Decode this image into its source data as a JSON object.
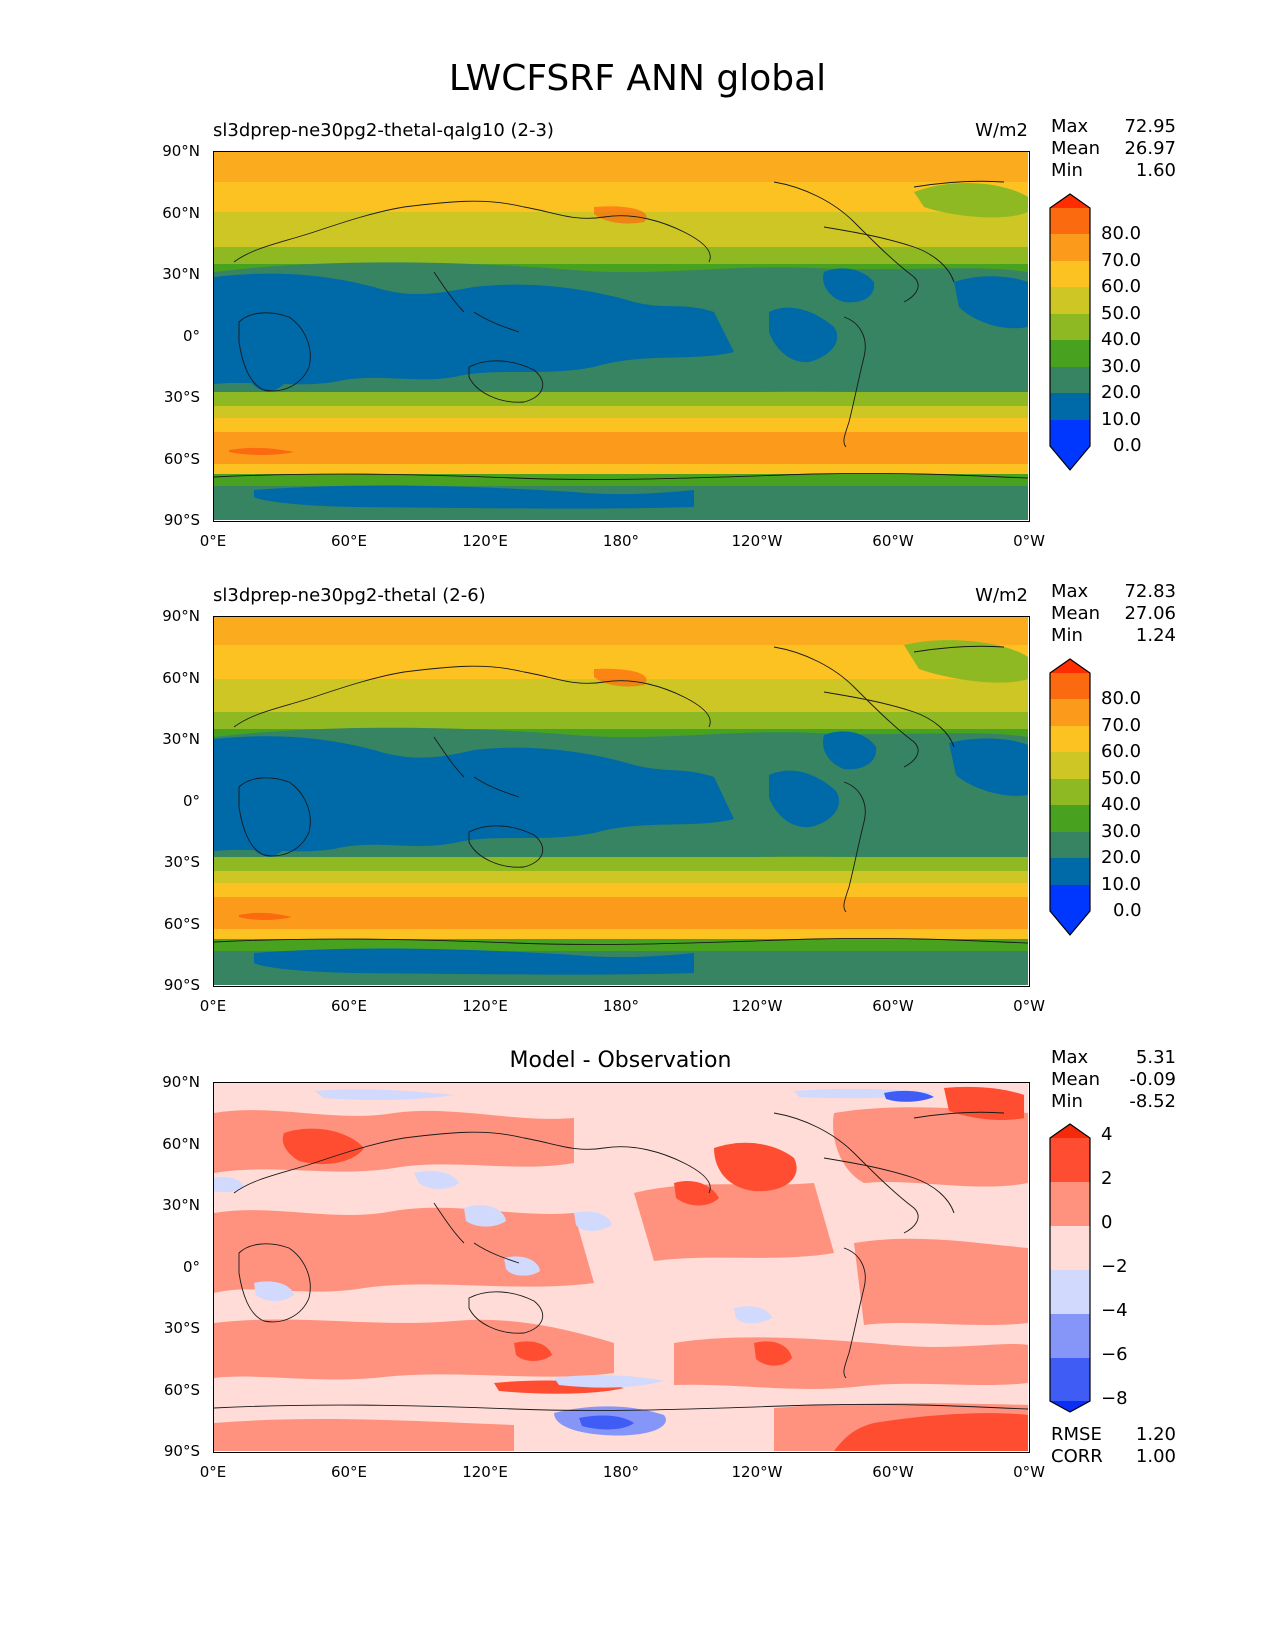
{
  "figure": {
    "title": "LWCFSRF ANN global"
  },
  "axes": {
    "y_ticks": [
      "90°N",
      "60°N",
      "30°N",
      "0°",
      "30°S",
      "60°S",
      "90°S"
    ],
    "x_ticks": [
      "0°E",
      "60°E",
      "120°E",
      "180°",
      "120°W",
      "60°W",
      "0°W"
    ]
  },
  "panels": [
    {
      "label": "sl3dprep-ne30pg2-thetal-qalg10 (2-3)",
      "units": "W/m2",
      "stats": [
        {
          "name": "Max",
          "value": "72.95"
        },
        {
          "name": "Mean",
          "value": "26.97"
        },
        {
          "name": "Min",
          "value": "1.60"
        }
      ],
      "colorbar": {
        "labels": [
          "80.0",
          "70.0",
          "60.0",
          "50.0",
          "40.0",
          "30.0",
          "20.0",
          "10.0",
          "0.0"
        ],
        "colors": [
          "#0037ff",
          "#0069a8",
          "#368461",
          "#48a220",
          "#8fb923",
          "#cdc624",
          "#fbc222",
          "#fc9a1b",
          "#fb6a0f",
          "#ff2d00"
        ]
      }
    },
    {
      "label": "sl3dprep-ne30pg2-thetal (2-6)",
      "units": "W/m2",
      "stats": [
        {
          "name": "Max",
          "value": "72.83"
        },
        {
          "name": "Mean",
          "value": "27.06"
        },
        {
          "name": "Min",
          "value": "1.24"
        }
      ],
      "colorbar": {
        "labels": [
          "80.0",
          "70.0",
          "60.0",
          "50.0",
          "40.0",
          "30.0",
          "20.0",
          "10.0",
          "0.0"
        ],
        "colors": [
          "#0037ff",
          "#0069a8",
          "#368461",
          "#48a220",
          "#8fb923",
          "#cdc624",
          "#fbc222",
          "#fc9a1b",
          "#fb6a0f",
          "#ff2d00"
        ]
      }
    },
    {
      "subtitle": "Model - Observation",
      "stats": [
        {
          "name": "Max",
          "value": "5.31"
        },
        {
          "name": "Mean",
          "value": "-0.09"
        },
        {
          "name": "Min",
          "value": "-8.52"
        }
      ],
      "colorbar": {
        "labels": [
          "4",
          "2",
          "0",
          "−2",
          "−4",
          "−6",
          "−8"
        ],
        "colors": [
          "#0a2ef5",
          "#3f5cf5",
          "#8595f8",
          "#d1d9fc",
          "#ffdcd7",
          "#fe927e",
          "#fe4d31",
          "#f52a0a"
        ]
      },
      "metrics": [
        {
          "name": "RMSE",
          "value": "1.20"
        },
        {
          "name": "CORR",
          "value": "1.00"
        }
      ]
    }
  ]
}
